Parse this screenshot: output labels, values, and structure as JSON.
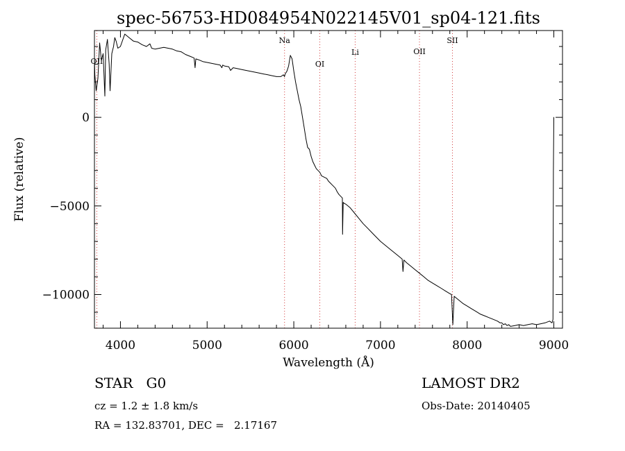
{
  "chart_data": {
    "type": "line",
    "title": "spec-56753-HD084954N022145V01_sp04-121.fits",
    "xlabel": "Wavelength (Å)",
    "ylabel": "Flux (relative)",
    "xlim": [
      3700,
      9100
    ],
    "ylim": [
      -11900,
      4900
    ],
    "x_ticks": [
      4000,
      5000,
      6000,
      7000,
      8000,
      9000
    ],
    "x_tick_labels": [
      "4000",
      "5000",
      "6000",
      "7000",
      "8000",
      "9000"
    ],
    "y_ticks": [
      0,
      -5000,
      -10000
    ],
    "y_tick_labels": [
      "0",
      "−5000",
      "−10000"
    ],
    "series": [
      {
        "x": [
          3700,
          3705,
          3720,
          3740,
          3760,
          3780,
          3800,
          3820,
          3830,
          3850,
          3870,
          3880,
          3900,
          3920,
          3935,
          3950,
          3970,
          4000,
          4050,
          4100,
          4150,
          4200,
          4250,
          4300,
          4340,
          4360,
          4400,
          4450,
          4500,
          4550,
          4600,
          4650,
          4700,
          4750,
          4800,
          4850,
          4861,
          4870,
          4900,
          4950,
          5000,
          5050,
          5100,
          5150,
          5170,
          5180,
          5200,
          5250,
          5270,
          5300,
          5350,
          5400,
          5450,
          5500,
          5550,
          5600,
          5650,
          5700,
          5750,
          5800,
          5850,
          5880,
          5893,
          5900,
          5920,
          5940,
          5960,
          5980,
          6000,
          6020,
          6040,
          6060,
          6080,
          6100,
          6120,
          6140,
          6160,
          6180,
          6200,
          6220,
          6240,
          6260,
          6280,
          6300,
          6310,
          6320,
          6340,
          6360,
          6380,
          6400,
          6420,
          6440,
          6460,
          6480,
          6500,
          6520,
          6540,
          6560,
          6563,
          6570,
          6580,
          6600,
          6650,
          6700,
          6750,
          6800,
          6850,
          6900,
          6950,
          7000,
          7100,
          7200,
          7250,
          7260,
          7270,
          7300,
          7350,
          7400,
          7450,
          7500,
          7550,
          7600,
          7650,
          7700,
          7750,
          7800,
          7820,
          7835,
          7850,
          7900,
          7950,
          8000,
          8050,
          8100,
          8150,
          8200,
          8250,
          8300,
          8350,
          8380,
          8400,
          8420,
          8440,
          8460,
          8480,
          8500,
          8550,
          8600,
          8650,
          8700,
          8750,
          8800,
          8850,
          8900,
          8950,
          8980,
          8990,
          8995,
          9000,
          9002
        ],
        "y": [
          3300,
          2400,
          1500,
          2200,
          4200,
          3200,
          3600,
          1200,
          3800,
          4400,
          3000,
          1500,
          3600,
          4000,
          4500,
          4300,
          3900,
          4000,
          4700,
          4500,
          4300,
          4250,
          4100,
          4000,
          4150,
          3900,
          3850,
          3900,
          3950,
          3900,
          3850,
          3750,
          3700,
          3550,
          3450,
          3350,
          2800,
          3300,
          3250,
          3150,
          3100,
          3050,
          3000,
          2950,
          2800,
          2950,
          2900,
          2850,
          2650,
          2800,
          2750,
          2700,
          2650,
          2600,
          2550,
          2500,
          2450,
          2400,
          2350,
          2300,
          2300,
          2400,
          2300,
          2450,
          2600,
          2900,
          3500,
          3300,
          2600,
          2000,
          1500,
          1000,
          600,
          0,
          -600,
          -1200,
          -1700,
          -1800,
          -2200,
          -2500,
          -2700,
          -2900,
          -3000,
          -3100,
          -3200,
          -3300,
          -3350,
          -3400,
          -3450,
          -3600,
          -3700,
          -3800,
          -3900,
          -4000,
          -4200,
          -4350,
          -4450,
          -4550,
          -6600,
          -4800,
          -4850,
          -4900,
          -5100,
          -5400,
          -5700,
          -6000,
          -6250,
          -6500,
          -6750,
          -7000,
          -7400,
          -7800,
          -8000,
          -8700,
          -8050,
          -8200,
          -8400,
          -8600,
          -8800,
          -9000,
          -9200,
          -9350,
          -9500,
          -9650,
          -9800,
          -9950,
          -10000,
          -11700,
          -10100,
          -10300,
          -10500,
          -10650,
          -10800,
          -10950,
          -11100,
          -11200,
          -11300,
          -11400,
          -11500,
          -11600,
          -11600,
          -11700,
          -11650,
          -11750,
          -11700,
          -11800,
          -11750,
          -11700,
          -11750,
          -11700,
          -11650,
          -11700,
          -11650,
          -11600,
          -11500,
          -11600,
          -11400,
          -3000,
          0,
          0
        ]
      }
    ],
    "line_markers": [
      {
        "label": "OII",
        "x": 3727
      },
      {
        "label": "Na",
        "x": 5893
      },
      {
        "label": "OI",
        "x": 6300
      },
      {
        "label": "Li",
        "x": 6708
      },
      {
        "label": "OII",
        "x": 7450
      },
      {
        "label": "SII",
        "x": 7830
      }
    ],
    "grid": false
  },
  "info": {
    "class_line": "STAR   G0",
    "cz_line": "cz = 1.2 ± 1.8 km/s",
    "radec_line": "RA = 132.83701, DEC =   2.17167",
    "survey": "LAMOST DR2",
    "obs_date": "Obs-Date: 20140405"
  }
}
